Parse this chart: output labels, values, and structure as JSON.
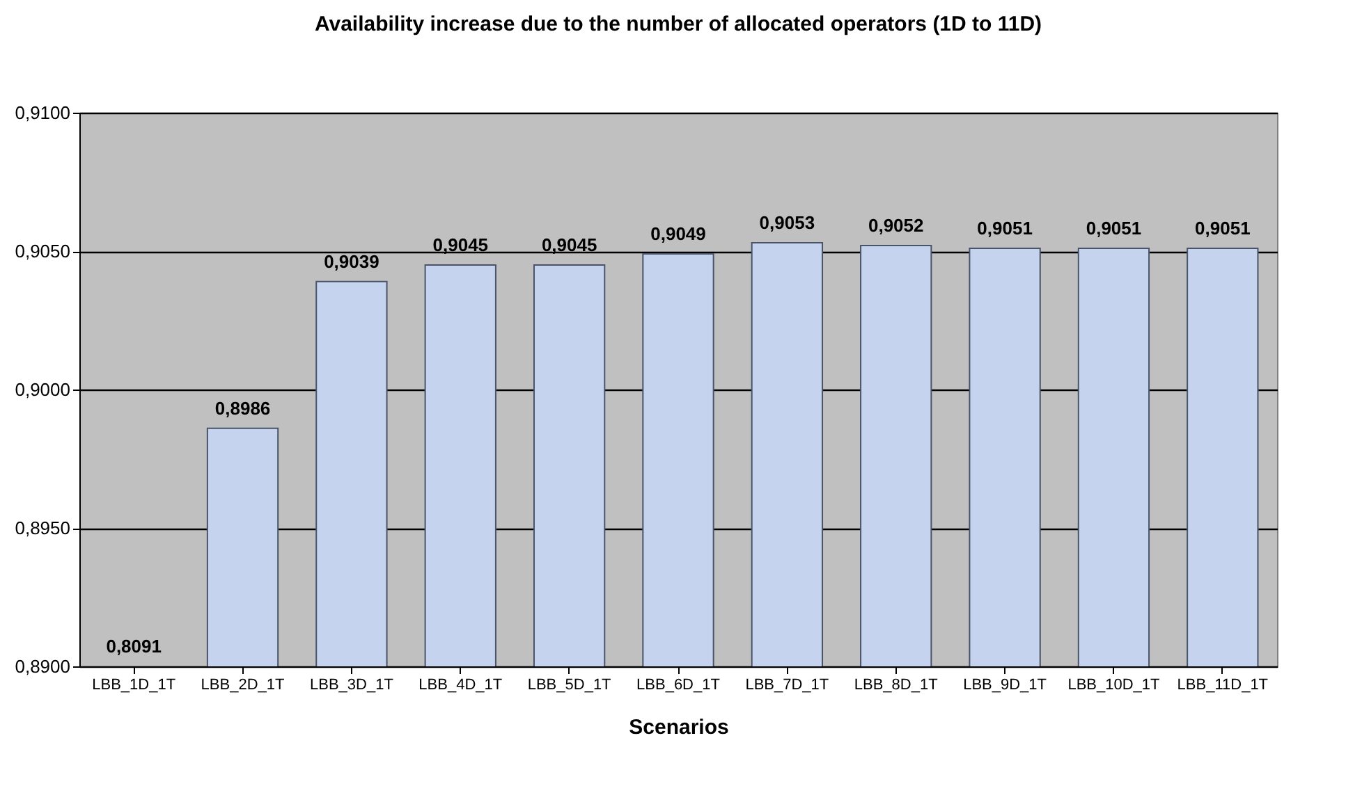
{
  "chart_data": {
    "type": "bar",
    "title": "Availability increase due to the number of allocated operators (1D to 11D)",
    "xlabel": "Scenarios",
    "categories": [
      "LBB_1D_1T",
      "LBB_2D_1T",
      "LBB_3D_1T",
      "LBB_4D_1T",
      "LBB_5D_1T",
      "LBB_6D_1T",
      "LBB_7D_1T",
      "LBB_8D_1T",
      "LBB_9D_1T",
      "LBB_10D_1T",
      "LBB_11D_1T"
    ],
    "values": [
      null,
      0.8986,
      0.9039,
      0.9045,
      0.9045,
      0.9049,
      0.9053,
      0.9052,
      0.9051,
      0.9051,
      0.9051
    ],
    "value_labels": [
      "0,8091",
      "0,8986",
      "0,9039",
      "0,9045",
      "0,9045",
      "0,9049",
      "0,9053",
      "0,9052",
      "0,9051",
      "0,9051",
      "0,9051"
    ],
    "color": "#c5d3ee",
    "ylim": [
      0.89,
      0.91
    ],
    "yticks": [
      {
        "value": 0.89,
        "label": "0,8900"
      },
      {
        "value": 0.895,
        "label": "0,8950"
      },
      {
        "value": 0.9,
        "label": "0,9000"
      },
      {
        "value": 0.905,
        "label": "0,9050"
      },
      {
        "value": 0.91,
        "label": "0,9100"
      }
    ],
    "grid": "y"
  }
}
